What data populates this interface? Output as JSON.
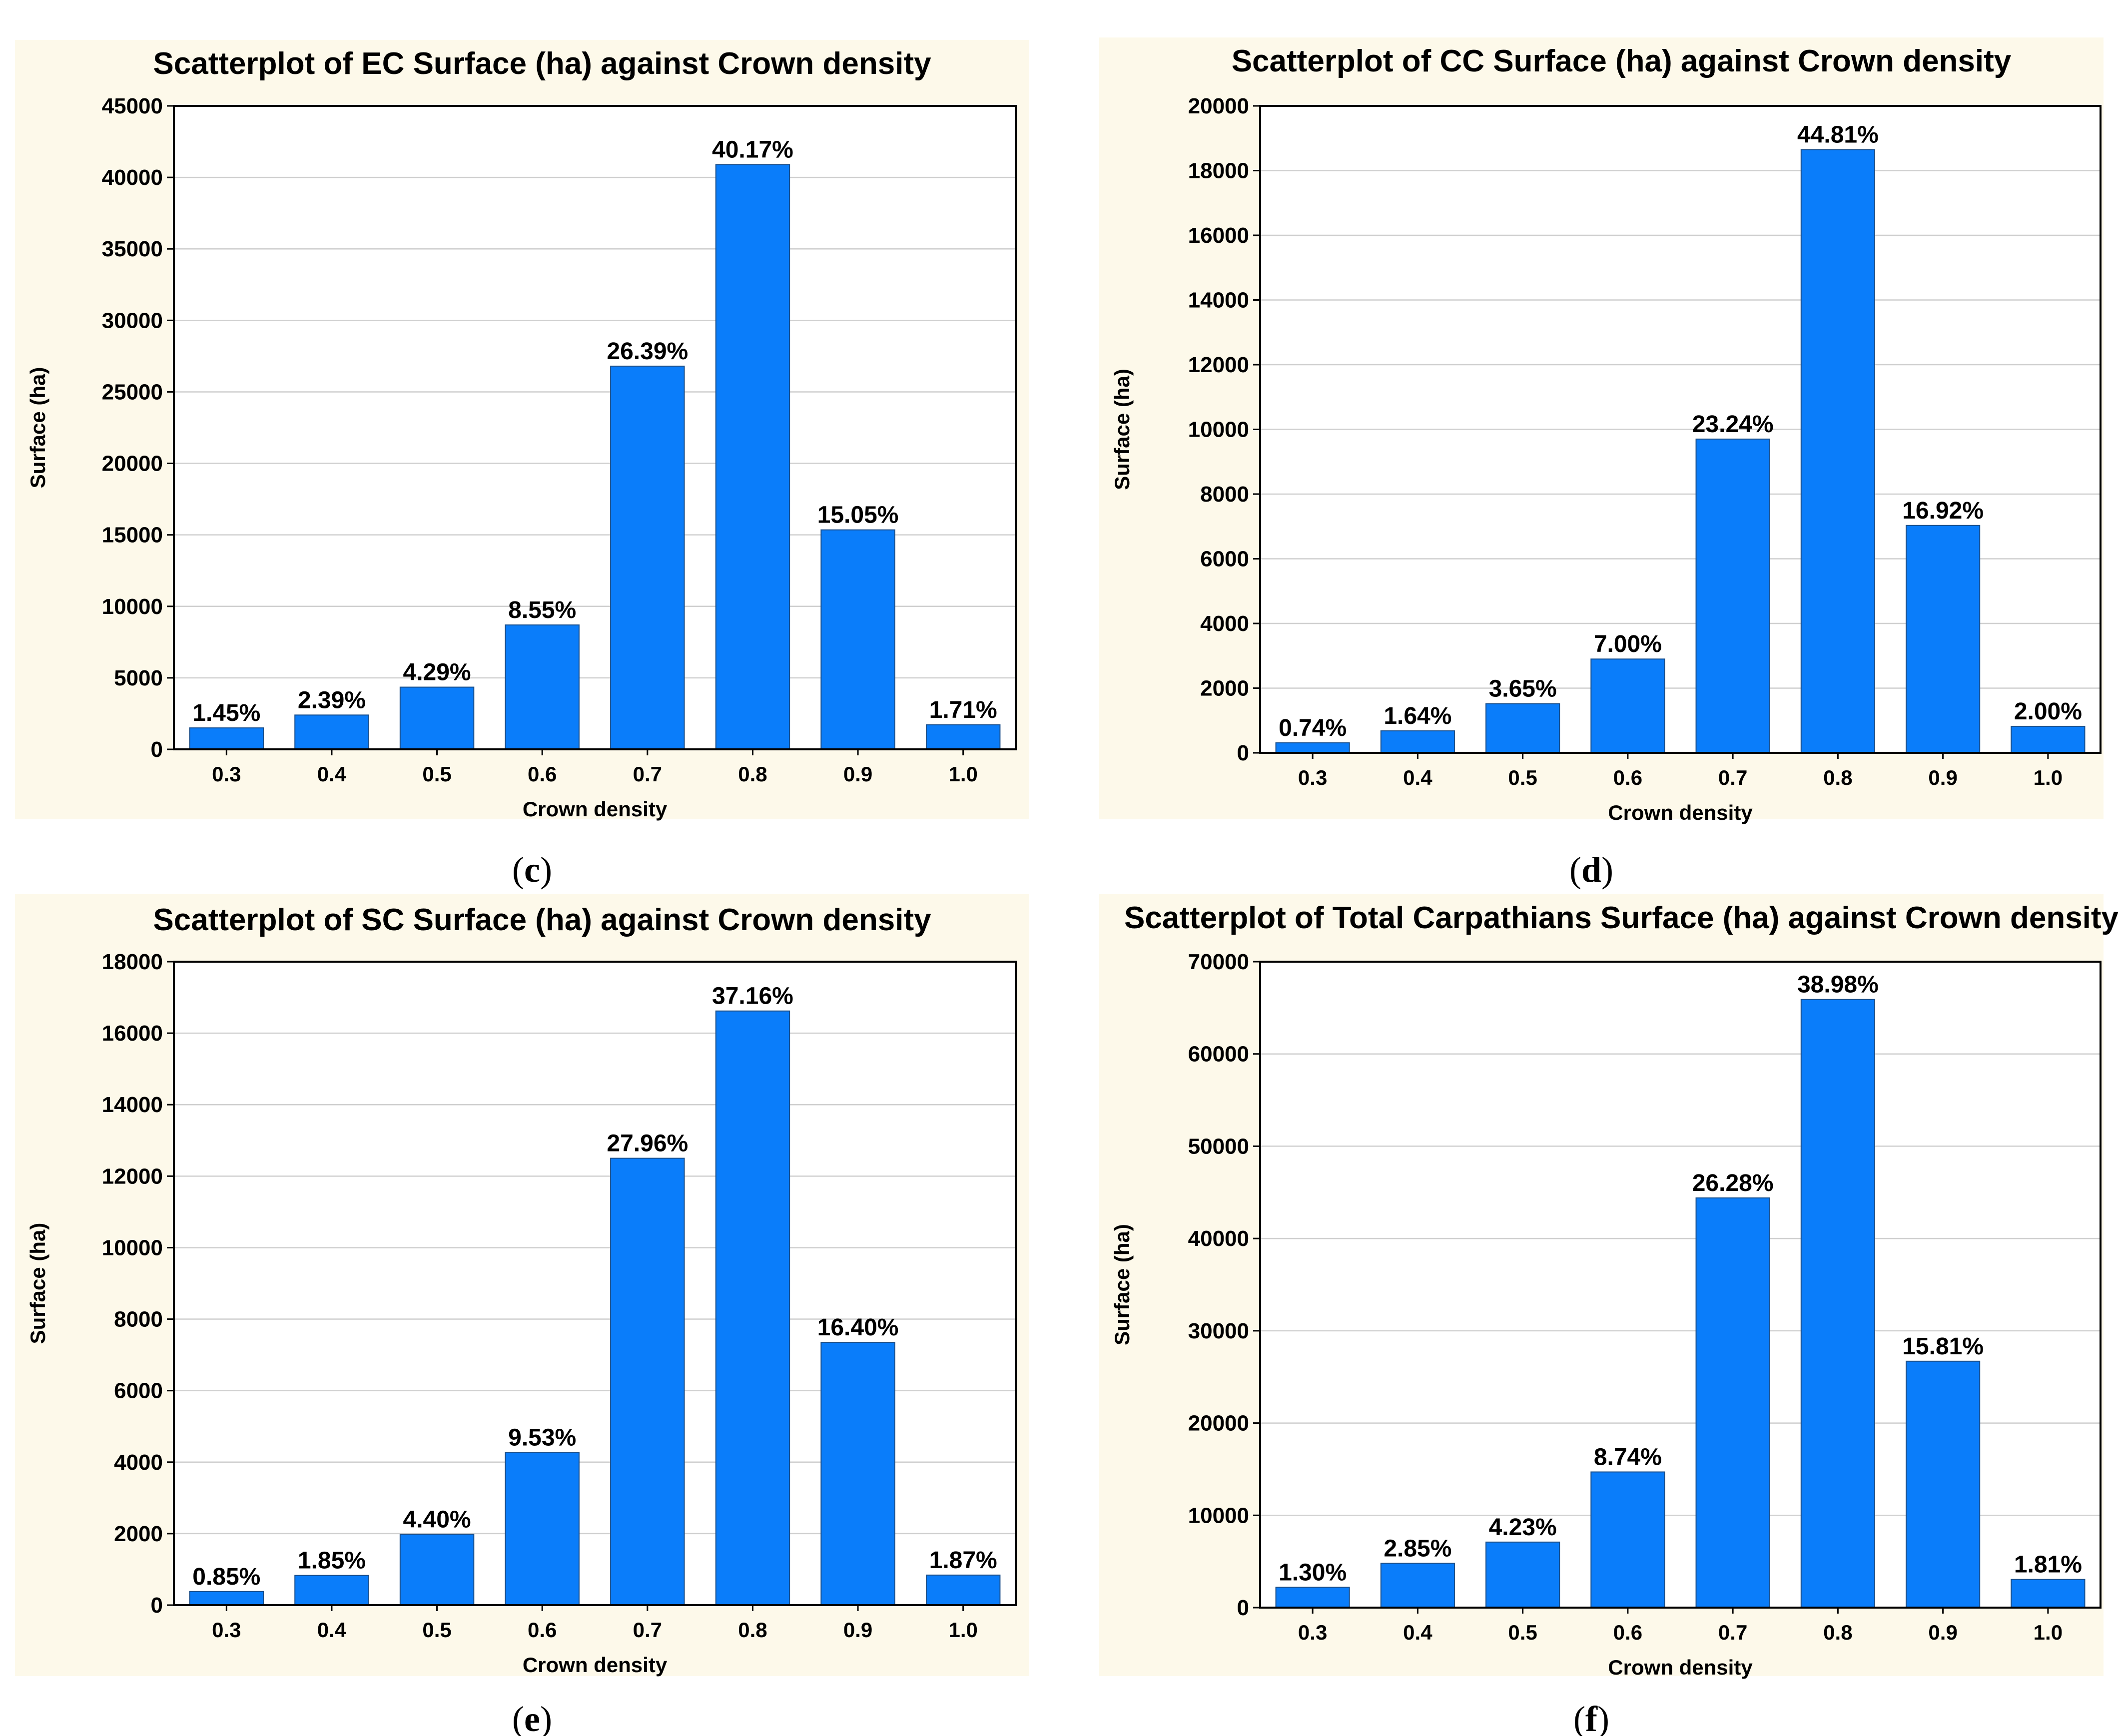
{
  "colors": {
    "bar": "#0a7dfa",
    "panel": "#fdf9ea"
  },
  "chart_data": [
    {
      "id": "c",
      "type": "bar",
      "title": "Scatterplot  of EC Surface (ha) against Crown density",
      "caption_pre": "(",
      "caption_letter": "c",
      "caption_post": ")",
      "xlabel": "Crown density",
      "ylabel": "Surface (ha)",
      "categories": [
        "0.3",
        "0.4",
        "0.5",
        "0.6",
        "0.7",
        "0.8",
        "0.9",
        "1.0"
      ],
      "values": [
        1500,
        2400,
        4350,
        8700,
        26800,
        40900,
        15350,
        1720
      ],
      "labels": [
        "1.45%",
        "2.39%",
        "4.29%",
        "8.55%",
        "26.39%",
        "40.17%",
        "15.05%",
        "1.71%"
      ],
      "ylim": [
        0,
        45000
      ],
      "yticks": [
        "0",
        "5000",
        "10000",
        "15000",
        "20000",
        "25000",
        "30000",
        "35000",
        "40000",
        "45000"
      ]
    },
    {
      "id": "d",
      "type": "bar",
      "title": "Scatterplot  of CC Surface (ha) against Crown density",
      "caption_pre": "(",
      "caption_letter": "d",
      "caption_post": ")",
      "xlabel": "Crown density",
      "ylabel": "Surface (ha)",
      "categories": [
        "0.3",
        "0.4",
        "0.5",
        "0.6",
        "0.7",
        "0.8",
        "0.9",
        "1.0"
      ],
      "values": [
        310,
        680,
        1520,
        2900,
        9700,
        18650,
        7030,
        820
      ],
      "labels": [
        "0.74%",
        "1.64%",
        "3.65%",
        "7.00%",
        "23.24%",
        "44.81%",
        "16.92%",
        "2.00%"
      ],
      "ylim": [
        0,
        20000
      ],
      "yticks": [
        "0",
        "2000",
        "4000",
        "6000",
        "8000",
        "10000",
        "12000",
        "14000",
        "16000",
        "18000",
        "20000"
      ]
    },
    {
      "id": "e",
      "type": "bar",
      "title": "Scatterplot  of SC  Surface (ha)  against Crown density",
      "caption_pre": "(",
      "caption_letter": "e",
      "caption_post": ")",
      "xlabel": "Crown density",
      "ylabel": "Surface (ha)",
      "categories": [
        "0.3",
        "0.4",
        "0.5",
        "0.6",
        "0.7",
        "0.8",
        "0.9",
        "1.0"
      ],
      "values": [
        380,
        830,
        1980,
        4270,
        12500,
        16620,
        7350,
        840
      ],
      "labels": [
        "0.85%",
        "1.85%",
        "4.40%",
        "9.53%",
        "27.96%",
        "37.16%",
        "16.40%",
        "1.87%"
      ],
      "ylim": [
        0,
        18000
      ],
      "yticks": [
        "0",
        "2000",
        "4000",
        "6000",
        "8000",
        "10000",
        "12000",
        "14000",
        "16000",
        "18000"
      ]
    },
    {
      "id": "f",
      "type": "bar",
      "title": "Scatterplot of Total Carpathians  Surface (ha)  against Crown density",
      "caption_pre": "(",
      "caption_letter": "f",
      "caption_post": ")",
      "xlabel": "Crown density",
      "ylabel": "Surface (ha)",
      "categories": [
        "0.3",
        "0.4",
        "0.5",
        "0.6",
        "0.7",
        "0.8",
        "0.9",
        "1.0"
      ],
      "values": [
        2200,
        4800,
        7100,
        14700,
        44400,
        65900,
        26700,
        3050
      ],
      "labels": [
        "1.30%",
        "2.85%",
        "4.23%",
        "8.74%",
        "26.28%",
        "38.98%",
        "15.81%",
        "1.81%"
      ],
      "ylim": [
        0,
        70000
      ],
      "yticks": [
        "0",
        "10000",
        "20000",
        "30000",
        "40000",
        "50000",
        "60000",
        "70000"
      ]
    }
  ]
}
